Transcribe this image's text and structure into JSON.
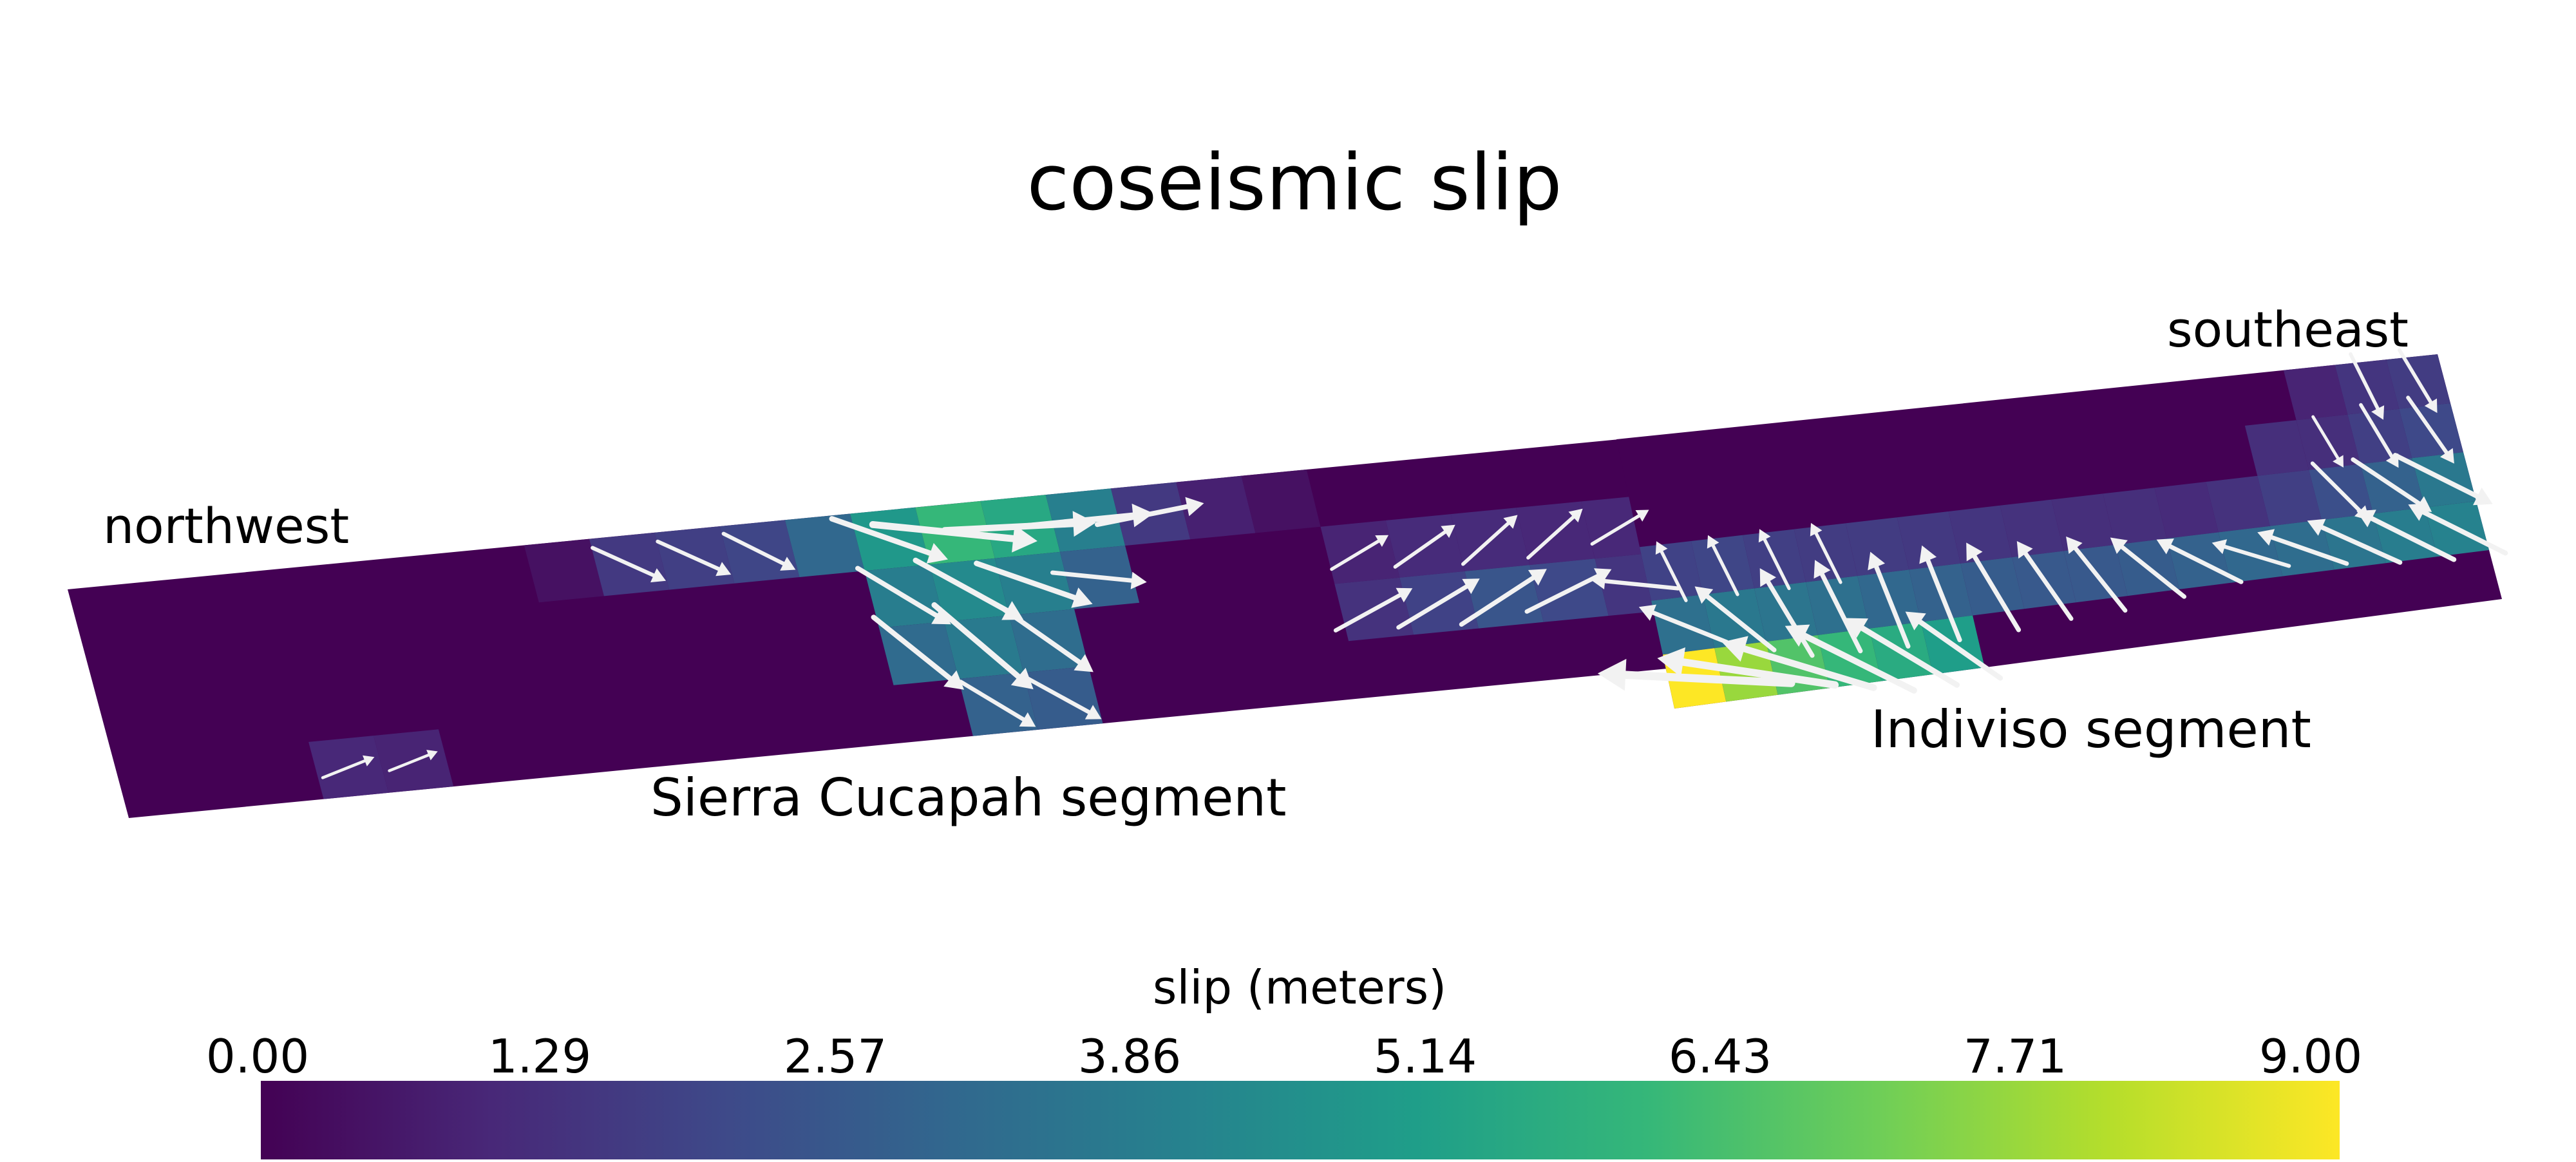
{
  "title": "coseismic slip",
  "labels": {
    "northwest": "northwest",
    "southeast": "southeast",
    "segment_west": "Sierra Cucapah segment",
    "segment_east": "Indiviso segment"
  },
  "colorbar": {
    "title": "slip (meters)",
    "ticks": [
      "0.00",
      "1.29",
      "2.57",
      "3.86",
      "5.14",
      "6.43",
      "7.71",
      "9.00"
    ],
    "range": [
      0.0,
      9.0
    ],
    "colormap": [
      "#440154",
      "#482878",
      "#3e4989",
      "#31688e",
      "#26828e",
      "#1f9e89",
      "#35b779",
      "#6ece58",
      "#b5de2b",
      "#fde725"
    ]
  },
  "chart_data": {
    "type": "heatmap",
    "title": "coseismic slip",
    "units": "meters",
    "vmin": 0.0,
    "vmax": 9.0,
    "segments": [
      {
        "name": "Sierra Cucapah segment",
        "columns": 24,
        "rows": 4,
        "cells": [
          {
            "col": 7,
            "row": 0,
            "slip": 0.4
          },
          {
            "col": 8,
            "row": 0,
            "slip": 1.5,
            "dir": [
              1,
              0.45
            ],
            "mag": 0.5
          },
          {
            "col": 9,
            "row": 0,
            "slip": 1.7,
            "dir": [
              1,
              0.45
            ],
            "mag": 0.5
          },
          {
            "col": 10,
            "row": 0,
            "slip": 1.9,
            "dir": [
              1,
              0.5
            ],
            "mag": 0.5
          },
          {
            "col": 11,
            "row": 0,
            "slip": 3.0
          },
          {
            "col": 12,
            "row": 0,
            "slip": 4.8,
            "dir": [
              1,
              0.35
            ],
            "mag": 1.1
          },
          {
            "col": 13,
            "row": 0,
            "slip": 6.0,
            "dir": [
              1,
              0.1
            ],
            "mag": 1.7
          },
          {
            "col": 14,
            "row": 0,
            "slip": 5.4,
            "dir": [
              1,
              -0.05
            ],
            "mag": 1.5
          },
          {
            "col": 15,
            "row": 0,
            "slip": 3.9,
            "dir": [
              1,
              -0.1
            ],
            "mag": 1.3
          },
          {
            "col": 16,
            "row": 0,
            "slip": 1.5,
            "dir": [
              1,
              -0.2
            ],
            "mag": 0.9
          },
          {
            "col": 17,
            "row": 0,
            "slip": 0.8
          },
          {
            "col": 18,
            "row": 0,
            "slip": 0.4
          },
          {
            "col": 12,
            "row": 1,
            "slip": 3.8,
            "dir": [
              1,
              0.6
            ],
            "mag": 0.9
          },
          {
            "col": 13,
            "row": 1,
            "slip": 4.3,
            "dir": [
              1,
              0.55
            ],
            "mag": 1.1
          },
          {
            "col": 14,
            "row": 1,
            "slip": 3.9,
            "dir": [
              1,
              0.35
            ],
            "mag": 1.1
          },
          {
            "col": 15,
            "row": 1,
            "slip": 2.8,
            "dir": [
              1,
              0.1
            ],
            "mag": 0.7
          },
          {
            "col": 19,
            "row": 1,
            "slip": 0.9,
            "dir": [
              1,
              -0.6
            ],
            "mag": 0.3
          },
          {
            "col": 20,
            "row": 1,
            "slip": 1.1,
            "dir": [
              1,
              -0.7
            ],
            "mag": 0.4
          },
          {
            "col": 21,
            "row": 1,
            "slip": 1.1,
            "dir": [
              1,
              -0.9
            ],
            "mag": 0.4
          },
          {
            "col": 22,
            "row": 1,
            "slip": 1.0,
            "dir": [
              1,
              -0.9
            ],
            "mag": 0.4
          },
          {
            "col": 23,
            "row": 1,
            "slip": 1.0,
            "dir": [
              1,
              -0.6
            ],
            "mag": 0.3
          },
          {
            "col": 12,
            "row": 2,
            "slip": 3.1,
            "dir": [
              1,
              0.8
            ],
            "mag": 1.0
          },
          {
            "col": 13,
            "row": 2,
            "slip": 3.7,
            "dir": [
              1,
              0.85
            ],
            "mag": 1.2
          },
          {
            "col": 14,
            "row": 2,
            "slip": 3.2,
            "dir": [
              1,
              0.7
            ],
            "mag": 0.9
          },
          {
            "col": 19,
            "row": 2,
            "slip": 1.3,
            "dir": [
              1,
              -0.55
            ],
            "mag": 0.6
          },
          {
            "col": 20,
            "row": 2,
            "slip": 1.8,
            "dir": [
              1,
              -0.6
            ],
            "mag": 0.7
          },
          {
            "col": 21,
            "row": 2,
            "slip": 2.4,
            "dir": [
              1,
              -0.65
            ],
            "mag": 0.8
          },
          {
            "col": 22,
            "row": 2,
            "slip": 2.0,
            "dir": [
              1,
              -0.5
            ],
            "mag": 0.7
          },
          {
            "col": 23,
            "row": 2,
            "slip": 1.4,
            "dir": [
              -1,
              -0.1
            ],
            "mag": 0.6
          },
          {
            "col": 13,
            "row": 3,
            "slip": 2.8,
            "dir": [
              1,
              0.6
            ],
            "mag": 0.6
          },
          {
            "col": 14,
            "row": 3,
            "slip": 2.6,
            "dir": [
              1,
              0.55
            ],
            "mag": 0.6
          },
          {
            "col": 3,
            "row": 3,
            "slip": 1.0,
            "dir": [
              1,
              -0.4
            ],
            "mag": 0.15
          },
          {
            "col": 4,
            "row": 3,
            "slip": 0.9,
            "dir": [
              1,
              -0.4
            ],
            "mag": 0.1
          }
        ]
      },
      {
        "name": "Indiviso segment",
        "columns": 16,
        "rows": 5,
        "cells": [
          {
            "col": 13,
            "row": 0,
            "slip": 0.9
          },
          {
            "col": 14,
            "row": 0,
            "slip": 1.4,
            "dir": [
              0.5,
              1
            ],
            "mag": 0.4
          },
          {
            "col": 15,
            "row": 0,
            "slip": 1.6,
            "dir": [
              0.6,
              1
            ],
            "mag": 0.4
          },
          {
            "col": 12,
            "row": 1,
            "slip": 1.2
          },
          {
            "col": 13,
            "row": 1,
            "slip": 1.2,
            "dir": [
              0.6,
              1
            ],
            "mag": 0.2
          },
          {
            "col": 14,
            "row": 1,
            "slip": 1.7,
            "dir": [
              0.6,
              1
            ],
            "mag": 0.4
          },
          {
            "col": 15,
            "row": 1,
            "slip": 2.0,
            "dir": [
              0.7,
              1
            ],
            "mag": 0.5
          },
          {
            "col": 0,
            "row": 2,
            "slip": 1.8,
            "dir": [
              -0.5,
              -1
            ],
            "mag": 0.3
          },
          {
            "col": 1,
            "row": 2,
            "slip": 1.9,
            "dir": [
              -0.5,
              -1
            ],
            "mag": 0.3
          },
          {
            "col": 2,
            "row": 2,
            "slip": 1.7,
            "dir": [
              -0.5,
              -1
            ],
            "mag": 0.3
          },
          {
            "col": 3,
            "row": 2,
            "slip": 1.6,
            "dir": [
              -0.5,
              -1
            ],
            "mag": 0.3
          },
          {
            "col": 4,
            "row": 2,
            "slip": 1.6
          },
          {
            "col": 5,
            "row": 2,
            "slip": 1.5
          },
          {
            "col": 6,
            "row": 2,
            "slip": 1.4
          },
          {
            "col": 7,
            "row": 2,
            "slip": 1.3
          },
          {
            "col": 8,
            "row": 2,
            "slip": 1.2
          },
          {
            "col": 9,
            "row": 2,
            "slip": 1.2
          },
          {
            "col": 10,
            "row": 2,
            "slip": 1.1
          },
          {
            "col": 11,
            "row": 2,
            "slip": 1.3
          },
          {
            "col": 12,
            "row": 2,
            "slip": 1.7
          },
          {
            "col": 13,
            "row": 2,
            "slip": 2.2,
            "dir": [
              0.8,
              0.8
            ],
            "mag": 0.5
          },
          {
            "col": 14,
            "row": 2,
            "slip": 2.8,
            "dir": [
              0.9,
              0.6
            ],
            "mag": 0.7
          },
          {
            "col": 15,
            "row": 2,
            "slip": 3.6,
            "dir": [
              1,
              0.5
            ],
            "mag": 0.9
          },
          {
            "col": 0,
            "row": 3,
            "slip": 3.3,
            "dir": [
              -1,
              -0.4
            ],
            "mag": 0.7
          },
          {
            "col": 1,
            "row": 3,
            "slip": 3.6,
            "dir": [
              -1,
              -0.8
            ],
            "mag": 0.8
          },
          {
            "col": 2,
            "row": 3,
            "slip": 3.5,
            "dir": [
              -0.6,
              -1
            ],
            "mag": 0.8
          },
          {
            "col": 3,
            "row": 3,
            "slip": 3.3,
            "dir": [
              -0.5,
              -1
            ],
            "mag": 0.8
          },
          {
            "col": 4,
            "row": 3,
            "slip": 3.0,
            "dir": [
              -0.4,
              -1
            ],
            "mag": 0.8
          },
          {
            "col": 5,
            "row": 3,
            "slip": 2.8,
            "dir": [
              -0.4,
              -1
            ],
            "mag": 0.8
          },
          {
            "col": 6,
            "row": 3,
            "slip": 2.6,
            "dir": [
              -0.6,
              -1
            ],
            "mag": 0.8
          },
          {
            "col": 7,
            "row": 3,
            "slip": 2.5,
            "dir": [
              -0.7,
              -1
            ],
            "mag": 0.7
          },
          {
            "col": 8,
            "row": 3,
            "slip": 2.5,
            "dir": [
              -0.8,
              -1
            ],
            "mag": 0.7
          },
          {
            "col": 9,
            "row": 3,
            "slip": 2.6,
            "dir": [
              -1,
              -0.8
            ],
            "mag": 0.7
          },
          {
            "col": 10,
            "row": 3,
            "slip": 2.8,
            "dir": [
              -1,
              -0.5
            ],
            "mag": 0.7
          },
          {
            "col": 11,
            "row": 3,
            "slip": 3.0,
            "dir": [
              -1,
              -0.3
            ],
            "mag": 0.5
          },
          {
            "col": 12,
            "row": 3,
            "slip": 3.2,
            "dir": [
              -1,
              -0.35
            ],
            "mag": 0.7
          },
          {
            "col": 13,
            "row": 3,
            "slip": 3.5,
            "dir": [
              -1,
              -0.45
            ],
            "mag": 0.8
          },
          {
            "col": 14,
            "row": 3,
            "slip": 3.8,
            "dir": [
              -1,
              -0.5
            ],
            "mag": 0.9
          },
          {
            "col": 15,
            "row": 3,
            "slip": 4.0,
            "dir": [
              -1,
              -0.5
            ],
            "mag": 0.9
          },
          {
            "col": 0,
            "row": 4,
            "slip": 9.0,
            "dir": [
              -1,
              -0.05
            ],
            "mag": 2.1
          },
          {
            "col": 1,
            "row": 4,
            "slip": 7.6,
            "dir": [
              -1,
              -0.15
            ],
            "mag": 1.9
          },
          {
            "col": 2,
            "row": 4,
            "slip": 6.5,
            "dir": [
              -1,
              -0.3
            ],
            "mag": 1.6
          },
          {
            "col": 3,
            "row": 4,
            "slip": 6.0,
            "dir": [
              -1,
              -0.5
            ],
            "mag": 1.4
          },
          {
            "col": 4,
            "row": 4,
            "slip": 5.5,
            "dir": [
              -1,
              -0.6
            ],
            "mag": 1.2
          },
          {
            "col": 5,
            "row": 4,
            "slip": 5.0,
            "dir": [
              -1,
              -0.7
            ],
            "mag": 1.0
          }
        ]
      }
    ]
  }
}
